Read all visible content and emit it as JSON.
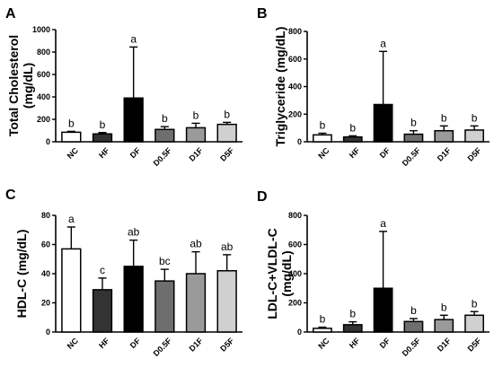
{
  "chart_data": [
    {
      "type": "bar",
      "panel": "A",
      "ylabel": "Total Cholesterol (mg/dL)",
      "ylabel_lines": [
        "Total Cholesterol",
        "(mg/dL)"
      ],
      "ylim": [
        0,
        1000
      ],
      "yticks": [
        0,
        200,
        400,
        600,
        800,
        1000
      ],
      "categories": [
        "NC",
        "HF",
        "DF",
        "D0.5F",
        "D1F",
        "D5F"
      ],
      "values": [
        85,
        70,
        390,
        110,
        125,
        155
      ],
      "errors": [
        8,
        12,
        455,
        25,
        40,
        18
      ],
      "significance": [
        "b",
        "b",
        "a",
        "b",
        "b",
        "b"
      ],
      "bar_colors": [
        "#ffffff",
        "#333333",
        "#000000",
        "#6e6e6e",
        "#9a9a9a",
        "#d0d0d0"
      ],
      "grid": false
    },
    {
      "type": "bar",
      "panel": "B",
      "ylabel": "Triglyceride (mg/dL)",
      "ylabel_lines": [
        "Triglyceride (mg/dL)"
      ],
      "ylim": [
        0,
        800
      ],
      "yticks": [
        0,
        200,
        400,
        600,
        800
      ],
      "categories": [
        "NC",
        "HF",
        "DF",
        "D0.5F",
        "D1F",
        "D5F"
      ],
      "values": [
        50,
        35,
        270,
        55,
        80,
        85
      ],
      "errors": [
        12,
        8,
        385,
        25,
        35,
        30
      ],
      "significance": [
        "b",
        "b",
        "a",
        "b",
        "b",
        "b"
      ],
      "bar_colors": [
        "#ffffff",
        "#333333",
        "#000000",
        "#6e6e6e",
        "#9a9a9a",
        "#d0d0d0"
      ],
      "grid": false
    },
    {
      "type": "bar",
      "panel": "C",
      "ylabel": "HDL-C (mg/dL)",
      "ylabel_lines": [
        "HDL-C (mg/dL)"
      ],
      "ylim": [
        0,
        80
      ],
      "yticks": [
        0,
        20,
        40,
        60,
        80
      ],
      "categories": [
        "NC",
        "HF",
        "DF",
        "D0.5F",
        "D1F",
        "D5F"
      ],
      "values": [
        57,
        29,
        45,
        35,
        40,
        42
      ],
      "errors": [
        15,
        8,
        18,
        8,
        15,
        11
      ],
      "significance": [
        "a",
        "c",
        "ab",
        "bc",
        "ab",
        "ab"
      ],
      "bar_colors": [
        "#ffffff",
        "#333333",
        "#000000",
        "#6e6e6e",
        "#9a9a9a",
        "#d0d0d0"
      ],
      "grid": false
    },
    {
      "type": "bar",
      "panel": "D",
      "ylabel": "LDL-C+VLDL-C (mg/dL)",
      "ylabel_lines": [
        "LDL-C+VLDL-C",
        "(mg/dL)"
      ],
      "ylim": [
        0,
        800
      ],
      "yticks": [
        0,
        200,
        400,
        600,
        800
      ],
      "categories": [
        "NC",
        "HF",
        "DF",
        "D0.5F",
        "D1F",
        "D5F"
      ],
      "values": [
        25,
        50,
        300,
        72,
        85,
        115
      ],
      "errors": [
        8,
        20,
        390,
        20,
        30,
        25
      ],
      "significance": [
        "b",
        "b",
        "a",
        "b",
        "b",
        "b"
      ],
      "bar_colors": [
        "#ffffff",
        "#333333",
        "#000000",
        "#6e6e6e",
        "#9a9a9a",
        "#d0d0d0"
      ],
      "grid": false
    }
  ]
}
